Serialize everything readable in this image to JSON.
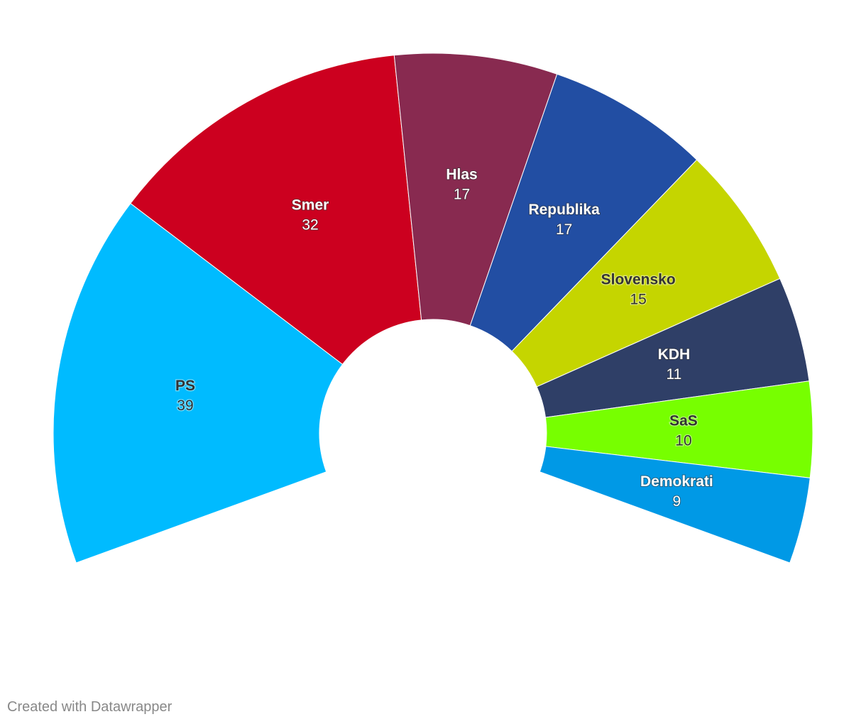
{
  "chart_data": {
    "type": "pie",
    "variant": "parliament-half-donut",
    "title": "",
    "total": 150,
    "segments": [
      {
        "label": "PS",
        "value": 39,
        "color": "#00bbff",
        "label_color": "dark"
      },
      {
        "label": "Smer",
        "value": 32,
        "color": "#cc001f",
        "label_color": "light"
      },
      {
        "label": "Hlas",
        "value": 17,
        "color": "#882a50",
        "label_color": "light"
      },
      {
        "label": "Republika",
        "value": 17,
        "color": "#224ea3",
        "label_color": "light"
      },
      {
        "label": "Slovensko",
        "value": 15,
        "color": "#c5d500",
        "label_color": "dark"
      },
      {
        "label": "KDH",
        "value": 11,
        "color": "#2f3f67",
        "label_color": "light"
      },
      {
        "label": "SaS",
        "value": 10,
        "color": "#77ff00",
        "label_color": "dark"
      },
      {
        "label": "Demokrati",
        "value": 9,
        "color": "#0099e6",
        "label_color": "light"
      }
    ]
  },
  "footer": {
    "credit": "Created with Datawrapper"
  }
}
